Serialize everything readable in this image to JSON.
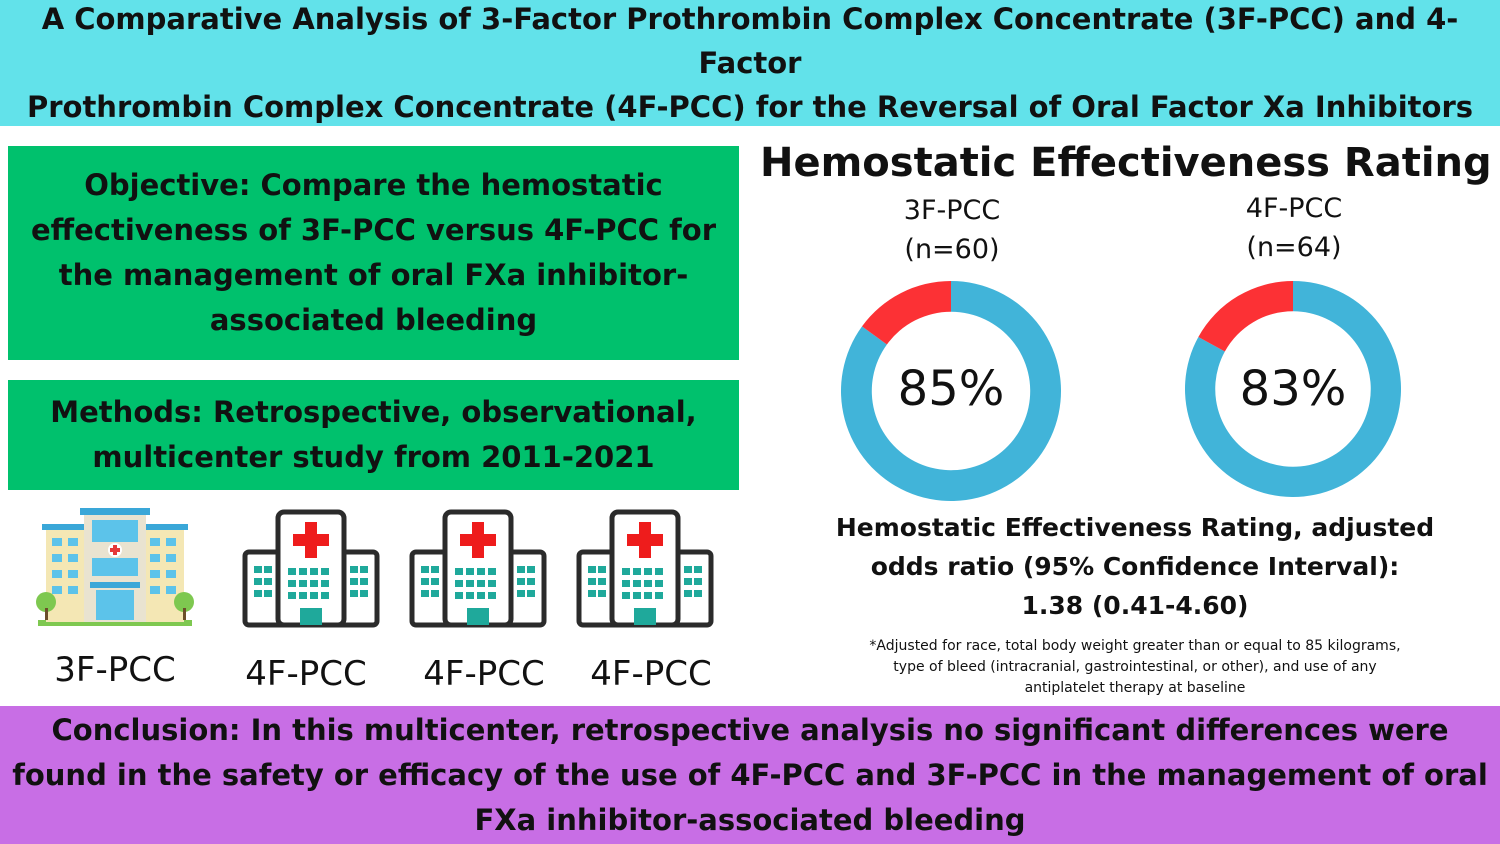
{
  "header": {
    "title": "A Comparative Analysis of 3-Factor Prothrombin Complex Concentrate (3F-PCC) and 4-Factor\nProthrombin Complex Concentrate (4F-PCC) for the Reversal of Oral Factor Xa Inhibitors"
  },
  "objective": {
    "text": "Objective: Compare the hemostatic\neffectiveness of 3F-PCC versus 4F-PCC for\nthe management of oral FXa inhibitor-\nassociated bleeding"
  },
  "methods": {
    "text": "Methods: Retrospective, observational,\nmulticenter study from 2011-2021"
  },
  "hospitals": [
    {
      "label": "3F-PCC",
      "icon": "hospital-building-icon"
    },
    {
      "label": "4F-PCC",
      "icon": "hospital-cross-icon"
    },
    {
      "label": "4F-PCC",
      "icon": "hospital-cross-icon"
    },
    {
      "label": "4F-PCC",
      "icon": "hospital-cross-icon"
    }
  ],
  "chart_data": {
    "type": "pie",
    "title": "Hemostatic Effectiveness Rating",
    "series": [
      {
        "name": "3F-PCC",
        "n_label": "(n=60)",
        "value_percent": 85,
        "value_label": "85%"
      },
      {
        "name": "4F-PCC",
        "n_label": "(n=64)",
        "value_percent": 83,
        "value_label": "83%"
      }
    ],
    "colors": {
      "effective": "#41b4d9",
      "not_effective": "#fc3135"
    }
  },
  "results": {
    "aor_text": "Hemostatic Effectiveness Rating, adjusted\nodds ratio (95% Confidence Interval):\n1.38 (0.41-4.60)",
    "footnote": "*Adjusted for race, total body weight greater than or equal to 85 kilograms,\ntype of bleed (intracranial, gastrointestinal, or other), and use of any\nantiplatelet therapy at baseline"
  },
  "conclusion": {
    "text": "Conclusion: In this multicenter, retrospective analysis no significant differences were\nfound in the safety or efficacy of the use of 4F-PCC and 3F-PCC in the management of oral\nFXa inhibitor-associated bleeding"
  },
  "colors": {
    "banner": "#62e2ea",
    "green_box": "#00c16d",
    "conclusion_box": "#c86ee5",
    "hospital_dark": "#2b2b2b",
    "hospital_teal": "#1fa99b",
    "cross_red": "#ee1c1c"
  }
}
